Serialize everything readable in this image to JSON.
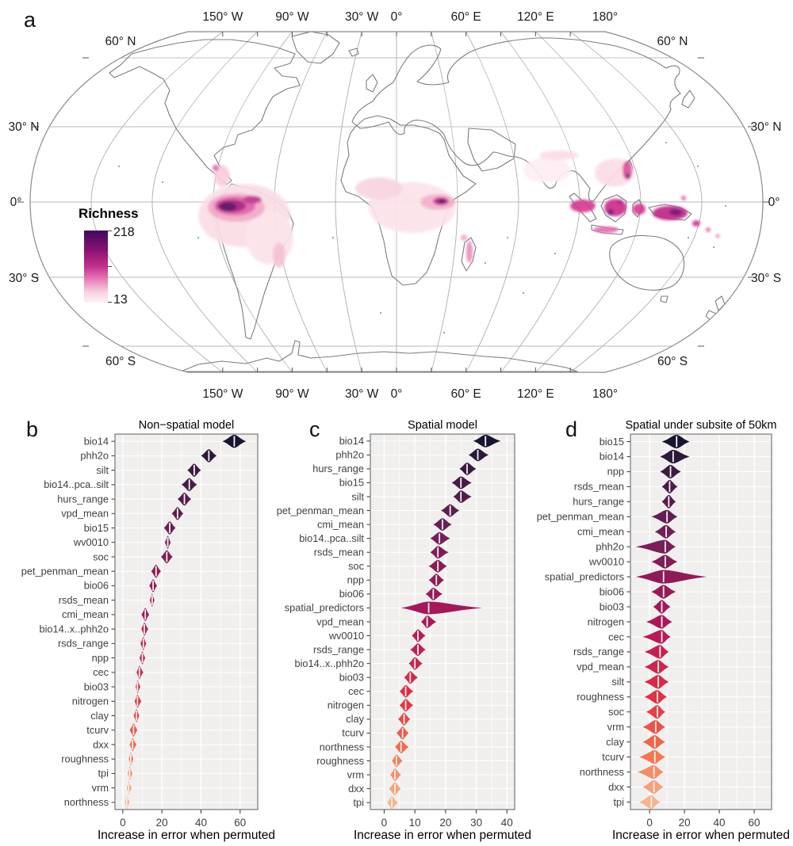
{
  "figure": {
    "letters": {
      "a": "a",
      "b": "b",
      "c": "c",
      "d": "d"
    }
  },
  "map": {
    "legend": {
      "title": "Richness",
      "max_label": "218",
      "min_label": "13",
      "gradient_stops": [
        "#3f0a5e",
        "#8c1273",
        "#c2318c",
        "#e87db8",
        "#f8cfe0",
        "#fdf3f6"
      ],
      "gradient_positions": [
        0,
        0.28,
        0.5,
        0.68,
        0.85,
        1
      ]
    },
    "lon_labels": [
      {
        "text": "150° W",
        "lon": -150
      },
      {
        "text": "90° W",
        "lon": -90
      },
      {
        "text": "30° W",
        "lon": -30
      },
      {
        "text": "0°",
        "lon": 0
      },
      {
        "text": "60° E",
        "lon": 60
      },
      {
        "text": "120° E",
        "lon": 120
      },
      {
        "text": "180°",
        "lon": 180
      }
    ],
    "lat_labels": [
      {
        "text": "60° N",
        "lat": 60
      },
      {
        "text": "30° N",
        "lat": 30
      },
      {
        "text": "0°",
        "lat": 0
      },
      {
        "text": "30° S",
        "lat": -30
      },
      {
        "text": "60° S",
        "lat": -60
      }
    ]
  },
  "colors": {
    "panel_bg": "#f0efee",
    "grid_major": "#ffffff",
    "grid_minor": "#f8f8f7",
    "panel_border": "#6b6b6b",
    "tick": "#333333",
    "axis_text": "#404040",
    "coast": "#7d7d7d",
    "graticule": "#b3b3b3",
    "median_line": "#f5f2ef"
  },
  "palette": {
    "stops": [
      "#191530",
      "#35193e",
      "#701f57",
      "#ad1759",
      "#e13342",
      "#f37651",
      "#f6b48e"
    ],
    "positions": [
      0,
      0.06,
      0.25,
      0.5,
      0.72,
      0.87,
      1
    ]
  },
  "chart_data": [
    {
      "type": "violin",
      "panel": "b",
      "title": "Non−spatial model",
      "xlabel": "Increase in error when permuted",
      "xticks": [
        0,
        20,
        40,
        60
      ],
      "minor_ticks": [
        10,
        30,
        50
      ],
      "xlim": [
        -4,
        69
      ],
      "items": [
        {
          "label": "bio14",
          "med": 57,
          "lo": 51,
          "hi": 63
        },
        {
          "label": "phh2o",
          "med": 44,
          "lo": 40,
          "hi": 48
        },
        {
          "label": "silt",
          "med": 36.5,
          "lo": 33,
          "hi": 40
        },
        {
          "label": "bio14..pca..silt",
          "med": 34,
          "lo": 30,
          "hi": 38
        },
        {
          "label": "hurs_range",
          "med": 31.5,
          "lo": 28,
          "hi": 35
        },
        {
          "label": "vpd_mean",
          "med": 28,
          "lo": 25,
          "hi": 31
        },
        {
          "label": "bio15",
          "med": 24,
          "lo": 21,
          "hi": 27
        },
        {
          "label": "wv0010",
          "med": 23,
          "lo": 21.5,
          "hi": 24.5
        },
        {
          "label": "soc",
          "med": 22.5,
          "lo": 19.5,
          "hi": 25.5
        },
        {
          "label": "pet_penman_mean",
          "med": 17,
          "lo": 14.5,
          "hi": 19.5
        },
        {
          "label": "bio06",
          "med": 15.5,
          "lo": 13.5,
          "hi": 17.5
        },
        {
          "label": "rsds_mean",
          "med": 15,
          "lo": 13.8,
          "hi": 16.2
        },
        {
          "label": "cmi_mean",
          "med": 11.5,
          "lo": 9.5,
          "hi": 13.5
        },
        {
          "label": "bio14..x..phh2o",
          "med": 11,
          "lo": 9.5,
          "hi": 13
        },
        {
          "label": "rsds_range",
          "med": 10.5,
          "lo": 9,
          "hi": 12
        },
        {
          "label": "npp",
          "med": 10,
          "lo": 8.5,
          "hi": 11.5
        },
        {
          "label": "cec",
          "med": 8.5,
          "lo": 7,
          "hi": 10.5
        },
        {
          "label": "bio03",
          "med": 7.5,
          "lo": 6.5,
          "hi": 9
        },
        {
          "label": "nitrogen",
          "med": 7.5,
          "lo": 6,
          "hi": 9.5
        },
        {
          "label": "clay",
          "med": 7,
          "lo": 5.5,
          "hi": 8.5
        },
        {
          "label": "tcurv",
          "med": 5.5,
          "lo": 3.5,
          "hi": 7.5
        },
        {
          "label": "dxx",
          "med": 5,
          "lo": 3.5,
          "hi": 7
        },
        {
          "label": "roughness",
          "med": 4,
          "lo": 3,
          "hi": 5.5
        },
        {
          "label": "tpi",
          "med": 3.5,
          "lo": 2.5,
          "hi": 5
        },
        {
          "label": "vrm",
          "med": 3,
          "lo": 2,
          "hi": 4.5
        },
        {
          "label": "northness",
          "med": 2,
          "lo": 1,
          "hi": 3.5
        }
      ]
    },
    {
      "type": "violin",
      "panel": "c",
      "title": "Spatial model",
      "xlabel": "Increase in error when permuted",
      "xticks": [
        0,
        10,
        20,
        30,
        40
      ],
      "minor_ticks": [
        5,
        15,
        25,
        35
      ],
      "xlim": [
        -4.5,
        42.5
      ],
      "items": [
        {
          "label": "bio14",
          "med": 33,
          "lo": 29,
          "hi": 38
        },
        {
          "label": "phh2o",
          "med": 30.5,
          "lo": 27.5,
          "hi": 34
        },
        {
          "label": "hurs_range",
          "med": 27,
          "lo": 24.5,
          "hi": 30
        },
        {
          "label": "bio15",
          "med": 25,
          "lo": 22,
          "hi": 28.5
        },
        {
          "label": "silt",
          "med": 25,
          "lo": 22.5,
          "hi": 28.5
        },
        {
          "label": "pet_penman_mean",
          "med": 21.5,
          "lo": 18.5,
          "hi": 24.5
        },
        {
          "label": "cmi_mean",
          "med": 19,
          "lo": 16,
          "hi": 22
        },
        {
          "label": "bio14..pca..silt",
          "med": 18,
          "lo": 15,
          "hi": 21.5
        },
        {
          "label": "rsds_mean",
          "med": 17.5,
          "lo": 15,
          "hi": 21
        },
        {
          "label": "soc",
          "med": 17.5,
          "lo": 14.5,
          "hi": 20.5
        },
        {
          "label": "npp",
          "med": 17,
          "lo": 14.5,
          "hi": 19.5
        },
        {
          "label": "bio06",
          "med": 16,
          "lo": 13.5,
          "hi": 19
        },
        {
          "label": "spatial_predictors",
          "med": 14.5,
          "lo": 5.5,
          "hi": 32
        },
        {
          "label": "vpd_mean",
          "med": 14,
          "lo": 12,
          "hi": 17
        },
        {
          "label": "wv0010",
          "med": 11,
          "lo": 9,
          "hi": 13.5
        },
        {
          "label": "rsds_range",
          "med": 11,
          "lo": 8.5,
          "hi": 13.5
        },
        {
          "label": "bio14..x..phh2o",
          "med": 10,
          "lo": 8,
          "hi": 12.5
        },
        {
          "label": "bio03",
          "med": 8.5,
          "lo": 6.5,
          "hi": 11
        },
        {
          "label": "cec",
          "med": 7,
          "lo": 5,
          "hi": 9.5
        },
        {
          "label": "nitrogen",
          "med": 7,
          "lo": 5,
          "hi": 9.5
        },
        {
          "label": "clay",
          "med": 6.5,
          "lo": 4.5,
          "hi": 8.5
        },
        {
          "label": "tcurv",
          "med": 6,
          "lo": 4,
          "hi": 8
        },
        {
          "label": "northness",
          "med": 5.5,
          "lo": 3.5,
          "hi": 8
        },
        {
          "label": "roughness",
          "med": 4,
          "lo": 2.5,
          "hi": 6
        },
        {
          "label": "vrm",
          "med": 3.5,
          "lo": 2,
          "hi": 5.5
        },
        {
          "label": "dxx",
          "med": 3.5,
          "lo": 1.5,
          "hi": 5.5
        },
        {
          "label": "tpi",
          "med": 2.5,
          "lo": 1,
          "hi": 4.5
        }
      ]
    },
    {
      "type": "violin",
      "panel": "d",
      "title": "Spatial under subsite of 50km",
      "xlabel": "Increase in error when permuted",
      "xticks": [
        0,
        20,
        40,
        60
      ],
      "minor_ticks": [
        10,
        30,
        50
      ],
      "xlim": [
        -11,
        70
      ],
      "items": [
        {
          "label": "bio15",
          "med": 15.5,
          "lo": 7,
          "hi": 23
        },
        {
          "label": "bio14",
          "med": 13.5,
          "lo": 6,
          "hi": 23
        },
        {
          "label": "npp",
          "med": 12,
          "lo": 6,
          "hi": 18
        },
        {
          "label": "rsds_mean",
          "med": 11.5,
          "lo": 7,
          "hi": 16
        },
        {
          "label": "hurs_range",
          "med": 11,
          "lo": 7,
          "hi": 15
        },
        {
          "label": "pet_penman_mean",
          "med": 10,
          "lo": 1,
          "hi": 16
        },
        {
          "label": "cmi_mean",
          "med": 9.5,
          "lo": 3,
          "hi": 15
        },
        {
          "label": "phh2o",
          "med": 9,
          "lo": -8,
          "hi": 15
        },
        {
          "label": "wv0010",
          "med": 9,
          "lo": 1,
          "hi": 16
        },
        {
          "label": "spatial_predictors",
          "med": 8,
          "lo": -8,
          "hi": 33
        },
        {
          "label": "bio06",
          "med": 8,
          "lo": 1,
          "hi": 15
        },
        {
          "label": "bio03",
          "med": 7,
          "lo": 2,
          "hi": 12
        },
        {
          "label": "nitrogen",
          "med": 7,
          "lo": -2,
          "hi": 13
        },
        {
          "label": "cec",
          "med": 7,
          "lo": -4,
          "hi": 12
        },
        {
          "label": "rsds_range",
          "med": 6,
          "lo": -3,
          "hi": 11
        },
        {
          "label": "vpd_mean",
          "med": 5,
          "lo": -3,
          "hi": 11
        },
        {
          "label": "silt",
          "med": 5,
          "lo": -3,
          "hi": 11
        },
        {
          "label": "roughness",
          "med": 4.5,
          "lo": -3,
          "hi": 10
        },
        {
          "label": "soc",
          "med": 4.5,
          "lo": -2,
          "hi": 9
        },
        {
          "label": "vrm",
          "med": 3.5,
          "lo": -4,
          "hi": 9
        },
        {
          "label": "clay",
          "med": 3,
          "lo": -4,
          "hi": 9
        },
        {
          "label": "tcurv",
          "med": 3,
          "lo": -6,
          "hi": 9
        },
        {
          "label": "northness",
          "med": 2.5,
          "lo": -7,
          "hi": 8
        },
        {
          "label": "dxx",
          "med": 2.5,
          "lo": -4,
          "hi": 8
        },
        {
          "label": "tpi",
          "med": 1,
          "lo": -6,
          "hi": 6
        }
      ]
    }
  ]
}
